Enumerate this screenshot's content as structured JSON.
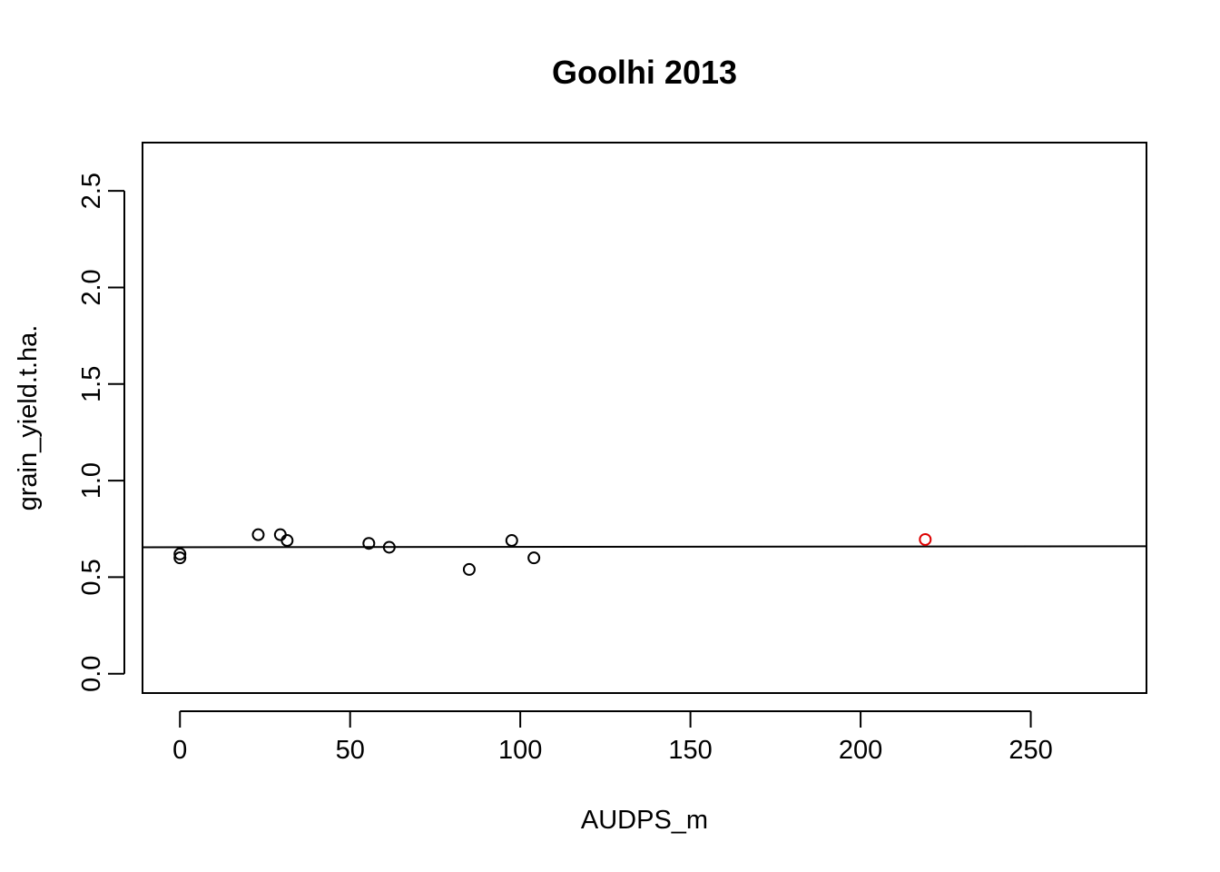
{
  "chart_data": {
    "type": "scatter",
    "title": "Goolhi 2013",
    "xlabel": "AUDPS_m",
    "ylabel": "grain_yield.t.ha.",
    "xlim": [
      -11,
      284
    ],
    "ylim": [
      -0.1,
      2.75
    ],
    "xticks": [
      "0",
      "50",
      "100",
      "150",
      "200",
      "250"
    ],
    "yticks": [
      "0.0",
      "0.5",
      "1.0",
      "1.5",
      "2.0",
      "2.5"
    ],
    "grid": false,
    "legend": "none",
    "point_color": "#000000",
    "highlight_color": "#dd0000",
    "points": [
      {
        "x": 0,
        "y": 0.6
      },
      {
        "x": 0,
        "y": 0.62
      },
      {
        "x": 23,
        "y": 0.72
      },
      {
        "x": 29.5,
        "y": 0.72
      },
      {
        "x": 31.5,
        "y": 0.69
      },
      {
        "x": 55.5,
        "y": 0.675
      },
      {
        "x": 61.5,
        "y": 0.655
      },
      {
        "x": 85,
        "y": 0.54
      },
      {
        "x": 97.5,
        "y": 0.69
      },
      {
        "x": 104,
        "y": 0.6
      },
      {
        "x": 219,
        "y": 0.695,
        "highlight": true
      }
    ],
    "fit_line": {
      "x": [
        -11,
        284
      ],
      "y": [
        0.655,
        0.66
      ]
    }
  }
}
